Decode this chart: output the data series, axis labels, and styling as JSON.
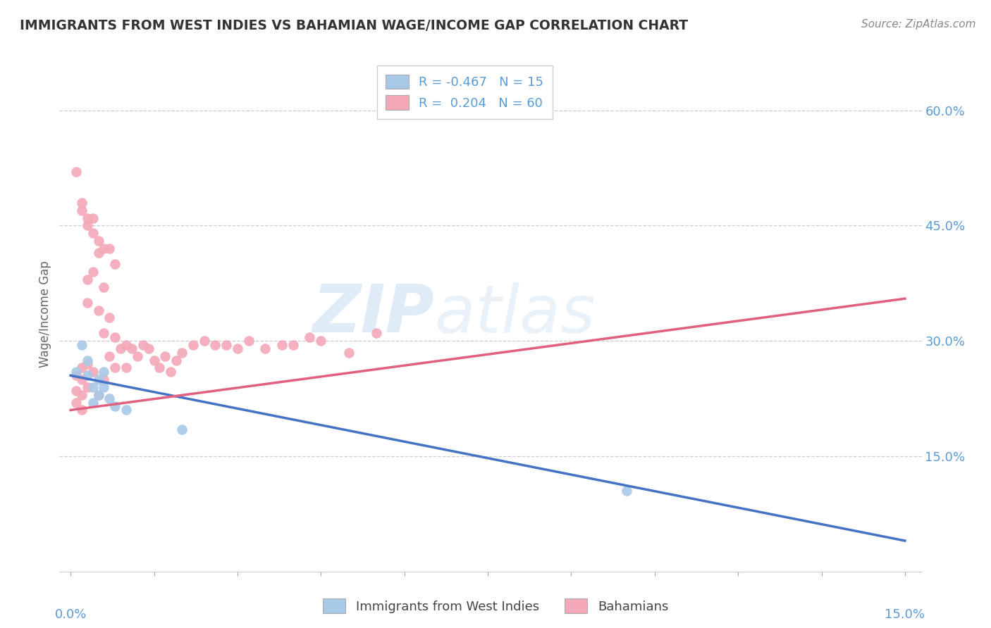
{
  "title": "IMMIGRANTS FROM WEST INDIES VS BAHAMIAN WAGE/INCOME GAP CORRELATION CHART",
  "source": "Source: ZipAtlas.com",
  "ylabel": "Wage/Income Gap",
  "xlim": [
    0.0,
    0.15
  ],
  "ylim": [
    0.0,
    0.67
  ],
  "blue_R": -0.467,
  "blue_N": 15,
  "pink_R": 0.204,
  "pink_N": 60,
  "blue_color": "#A8C8E8",
  "pink_color": "#F4A8B8",
  "blue_line_color": "#4472C4",
  "pink_line_color": "#E06080",
  "watermark_zip": "ZIP",
  "watermark_atlas": "atlas",
  "grid_color": "#CCCCCC",
  "axis_label_color": "#5B9BD5",
  "blue_points_x": [
    0.001,
    0.002,
    0.003,
    0.003,
    0.004,
    0.004,
    0.005,
    0.005,
    0.006,
    0.006,
    0.007,
    0.008,
    0.01,
    0.02,
    0.1
  ],
  "blue_points_y": [
    0.26,
    0.295,
    0.275,
    0.255,
    0.24,
    0.22,
    0.25,
    0.23,
    0.26,
    0.24,
    0.225,
    0.215,
    0.21,
    0.185,
    0.105
  ],
  "pink_points_x": [
    0.001,
    0.001,
    0.001,
    0.002,
    0.002,
    0.002,
    0.002,
    0.003,
    0.003,
    0.003,
    0.003,
    0.004,
    0.004,
    0.004,
    0.005,
    0.005,
    0.005,
    0.006,
    0.006,
    0.006,
    0.007,
    0.007,
    0.008,
    0.008,
    0.009,
    0.01,
    0.01,
    0.011,
    0.012,
    0.013,
    0.014,
    0.015,
    0.016,
    0.017,
    0.018,
    0.019,
    0.02,
    0.022,
    0.024,
    0.026,
    0.028,
    0.03,
    0.032,
    0.035,
    0.038,
    0.04,
    0.043,
    0.045,
    0.05,
    0.055,
    0.001,
    0.002,
    0.002,
    0.003,
    0.003,
    0.004,
    0.005,
    0.006,
    0.007,
    0.008
  ],
  "pink_points_y": [
    0.255,
    0.235,
    0.22,
    0.265,
    0.25,
    0.23,
    0.21,
    0.38,
    0.35,
    0.27,
    0.24,
    0.44,
    0.39,
    0.26,
    0.415,
    0.34,
    0.23,
    0.37,
    0.31,
    0.25,
    0.33,
    0.28,
    0.305,
    0.265,
    0.29,
    0.295,
    0.265,
    0.29,
    0.28,
    0.295,
    0.29,
    0.275,
    0.265,
    0.28,
    0.26,
    0.275,
    0.285,
    0.295,
    0.3,
    0.295,
    0.295,
    0.29,
    0.3,
    0.29,
    0.295,
    0.295,
    0.305,
    0.3,
    0.285,
    0.31,
    0.52,
    0.47,
    0.48,
    0.46,
    0.45,
    0.46,
    0.43,
    0.42,
    0.42,
    0.4
  ],
  "blue_line_x0": 0.0,
  "blue_line_x1": 0.15,
  "blue_line_y0": 0.255,
  "blue_line_y1": 0.04,
  "pink_line_x0": 0.0,
  "pink_line_x1": 0.15,
  "pink_line_y0": 0.21,
  "pink_line_y1": 0.355,
  "ytick_positions": [
    0.15,
    0.3,
    0.45,
    0.6
  ],
  "ytick_labels": [
    "15.0%",
    "30.0%",
    "45.0%",
    "60.0%"
  ],
  "legend_label_blue": "R = -0.467   N = 15",
  "legend_label_pink": "R =  0.204   N = 60",
  "bottom_legend_blue": "Immigrants from West Indies",
  "bottom_legend_pink": "Bahamians"
}
